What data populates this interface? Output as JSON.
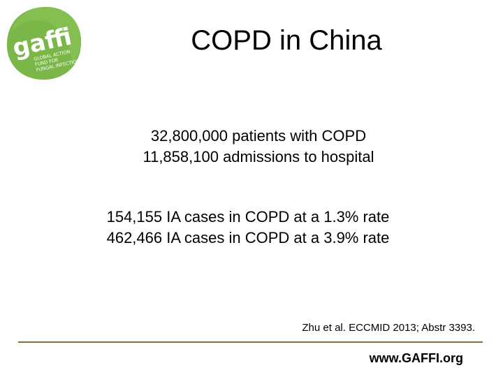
{
  "slide": {
    "title": "COPD in China",
    "stats_primary": [
      "32,800,000 patients with COPD",
      "11,858,100 admissions to hospital"
    ],
    "stats_secondary": [
      "154,155 IA cases in COPD at a 1.3% rate",
      "462,466 IA cases in COPD at a 3.9% rate"
    ],
    "citation": "Zhu et al. ECCMID 2013; Abstr 3393.",
    "footer_url": "www.GAFFI.org"
  },
  "logo": {
    "wordmark": "gaffi",
    "tagline": [
      "GLOBAL ACTION",
      "FUND FOR",
      "FUNGAL INFECTIONS"
    ],
    "colors": {
      "green": "#7ab648",
      "dark": "#4a7a2c"
    }
  },
  "colors": {
    "divider": "#8a6c38"
  }
}
